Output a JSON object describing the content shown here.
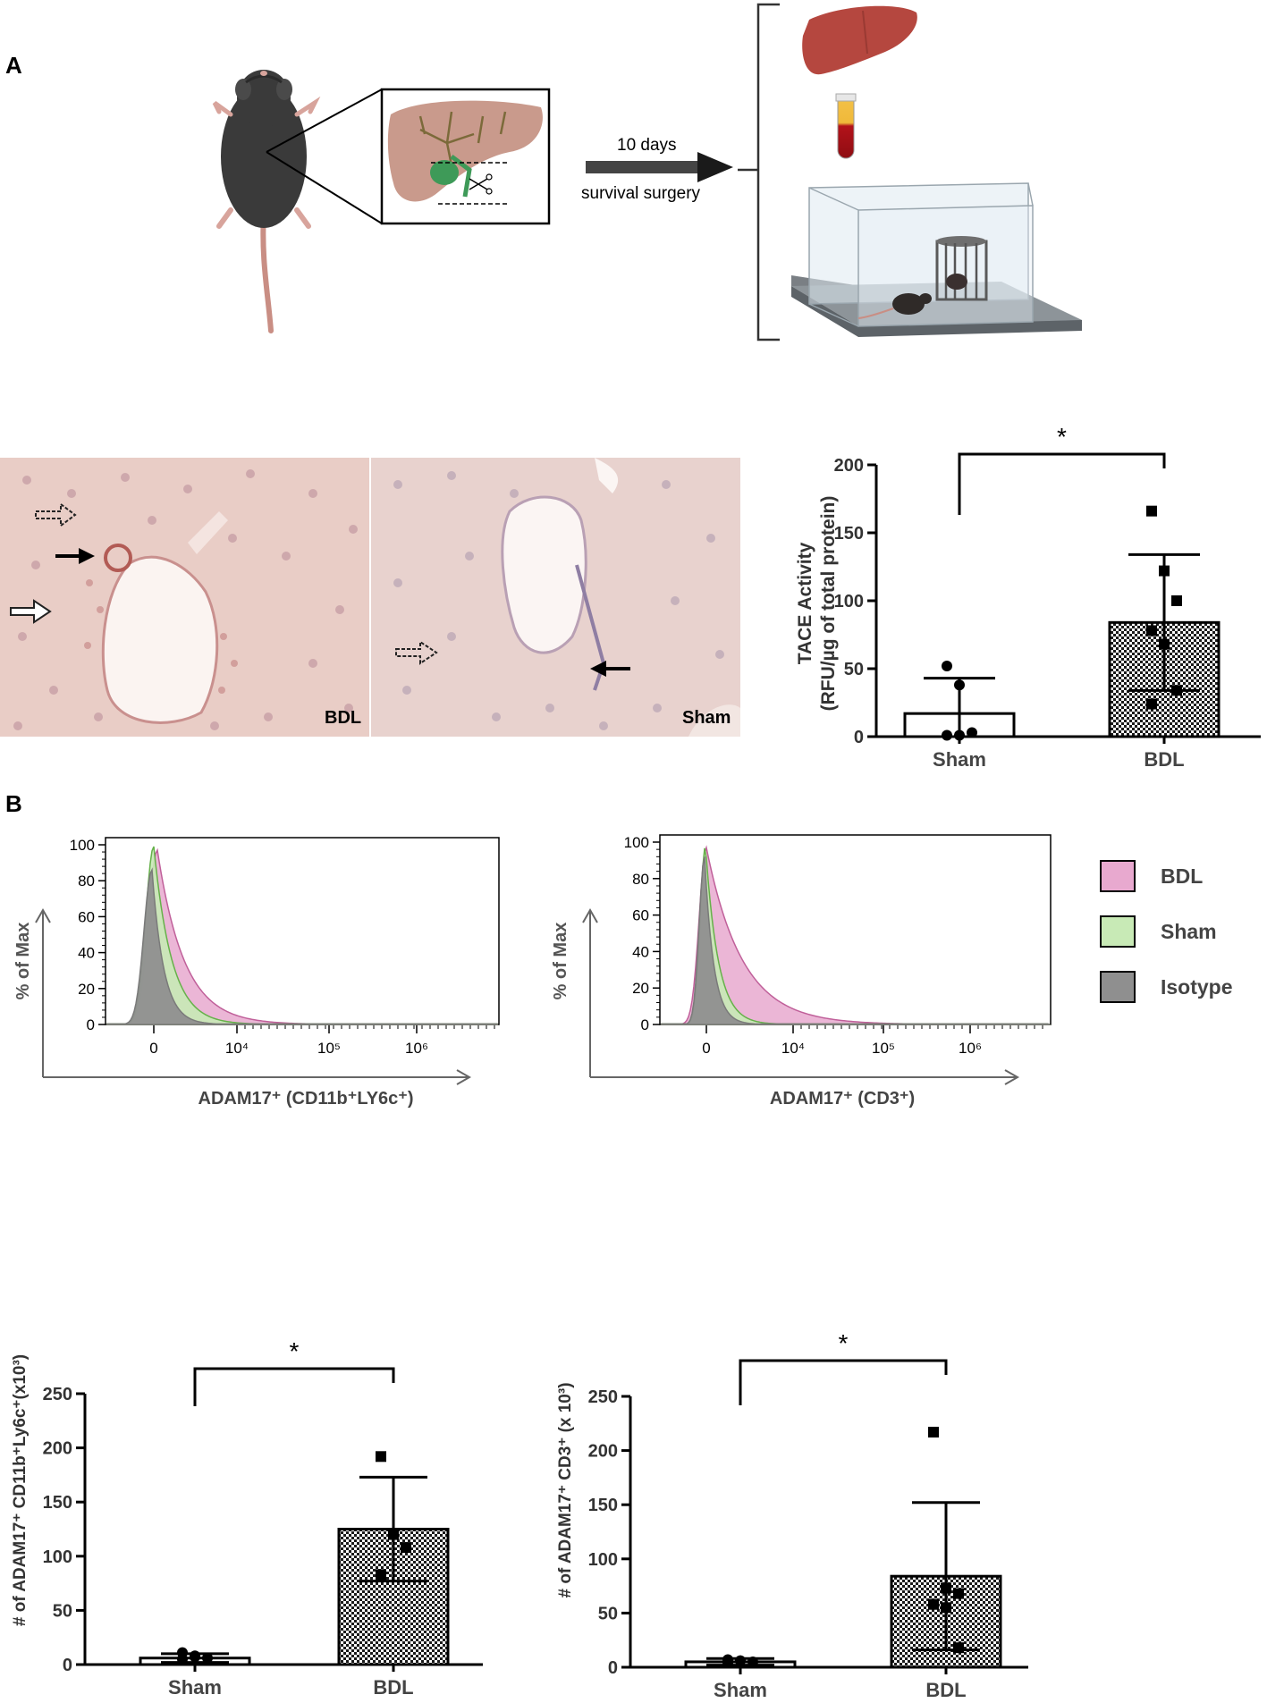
{
  "panels": {
    "a": "A",
    "b": "B"
  },
  "schematic": {
    "arrow_top": "10 days",
    "arrow_bottom": "survival surgery"
  },
  "micrographs": {
    "left_label": "BDL",
    "right_label": "Sham"
  },
  "legend": {
    "items": [
      {
        "label": "BDL",
        "color": "#e8a9cf"
      },
      {
        "label": "Sham",
        "color": "#c8eab6"
      },
      {
        "label": "Isotype",
        "color": "#8f8f8f"
      }
    ]
  },
  "chart_data": [
    {
      "type": "bar",
      "id": "tace",
      "ylabel_line1": "TACE Activity",
      "ylabel_line2": "(RFU/µg of total protein)",
      "categories": [
        "Sham",
        "BDL"
      ],
      "values": [
        17,
        84
      ],
      "error": [
        26,
        50
      ],
      "ylim": [
        0,
        200
      ],
      "yticks": [
        "0",
        "50",
        "100",
        "150",
        "200"
      ],
      "points": [
        [
          52,
          38,
          3,
          1,
          1
        ],
        [
          166,
          122,
          100,
          78,
          68,
          34,
          24
        ]
      ],
      "significance": "*"
    },
    {
      "type": "area",
      "id": "hist-cd11b",
      "xlabel": "ADAM17⁺ (CD11b⁺LY6c⁺)",
      "ylabel": "% of Max",
      "ylim": [
        0,
        100
      ],
      "yticks": [
        "0",
        "20",
        "40",
        "60",
        "80",
        "100"
      ],
      "xticks": [
        "0",
        "10⁴",
        "10⁵",
        "10⁶"
      ],
      "series": [
        "BDL",
        "Sham",
        "Isotype"
      ]
    },
    {
      "type": "area",
      "id": "hist-cd3",
      "xlabel": "ADAM17⁺ (CD3⁺)",
      "ylabel": "% of Max",
      "ylim": [
        0,
        100
      ],
      "yticks": [
        "0",
        "20",
        "40",
        "60",
        "80",
        "100"
      ],
      "xticks": [
        "0",
        "10⁴",
        "10⁵",
        "10⁶"
      ],
      "series": [
        "BDL",
        "Sham",
        "Isotype"
      ]
    },
    {
      "type": "bar",
      "id": "cd11b-count",
      "ylabel": "# of ADAM17⁺ CD11b⁺Ly6c⁺(x10³)",
      "categories": [
        "Sham",
        "BDL"
      ],
      "values": [
        6,
        125
      ],
      "error": [
        4,
        48
      ],
      "ylim": [
        0,
        250
      ],
      "yticks": [
        "0",
        "50",
        "100",
        "150",
        "200",
        "250"
      ],
      "points": [
        [
          11,
          8,
          6,
          5,
          7
        ],
        [
          192,
          120,
          108,
          83
        ]
      ],
      "significance": "*"
    },
    {
      "type": "bar",
      "id": "cd3-count",
      "ylabel": "# of ADAM17⁺ CD3⁺ (x 10³)",
      "categories": [
        "Sham",
        "BDL"
      ],
      "values": [
        5,
        84
      ],
      "error": [
        3,
        68
      ],
      "ylim": [
        0,
        250
      ],
      "yticks": [
        "0",
        "50",
        "100",
        "150",
        "200",
        "250"
      ],
      "points": [
        [
          7,
          6,
          5,
          4,
          6
        ],
        [
          217,
          73,
          68,
          58,
          55,
          18
        ]
      ],
      "significance": "*"
    }
  ]
}
